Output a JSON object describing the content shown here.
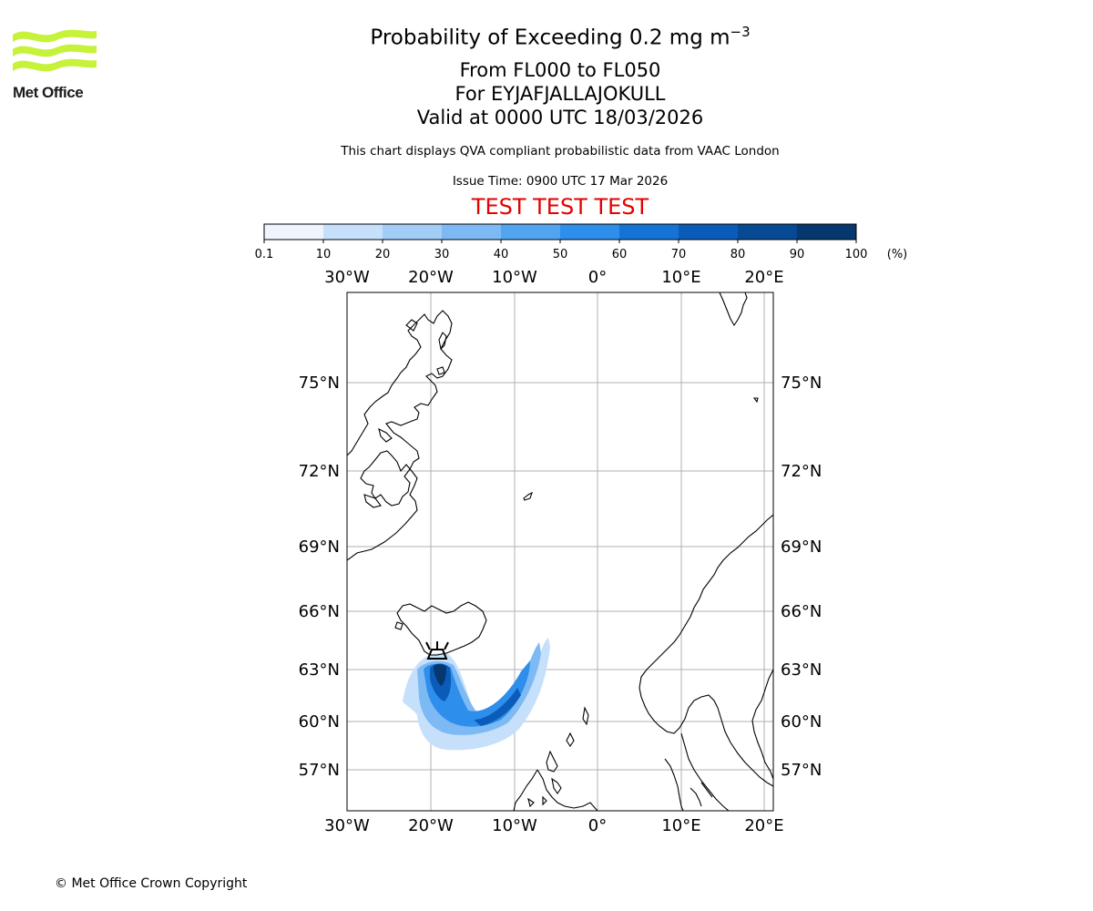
{
  "logo": {
    "text": "Met Office"
  },
  "title": {
    "main": "Probability of Exceeding 0.2 mg m",
    "main_superscript": "−3",
    "levels": "From FL000 to FL050",
    "volcano": "For EYJAFJALLAJOKULL",
    "valid": "Valid at 0000 UTC 18/03/2026",
    "subtitle": "This chart displays QVA compliant probabilistic data from VAAC London",
    "issue_time": "Issue Time: 0900 UTC 17 Mar 2026",
    "test_banner": "TEST TEST TEST"
  },
  "colors": {
    "test_banner": "#e60000",
    "colorbar": [
      "#eef5fd",
      "#c6e0fb",
      "#a2cdf7",
      "#7dbaf3",
      "#52a4f0",
      "#2e8eec",
      "#1573d6",
      "#0a5cb8",
      "#064a94",
      "#05386e"
    ],
    "coastline": "#000000",
    "gridline": "#b0b0b0"
  },
  "colorbar": {
    "ticks": [
      "0.1",
      "10",
      "20",
      "30",
      "40",
      "50",
      "60",
      "70",
      "80",
      "90",
      "100"
    ],
    "unit": "(%)"
  },
  "map": {
    "lon_labels": [
      "30°W",
      "20°W",
      "10°W",
      "0°",
      "10°E",
      "20°E"
    ],
    "lat_labels": [
      "75°N",
      "72°N",
      "69°N",
      "66°N",
      "63°N",
      "60°N",
      "57°N"
    ],
    "volcano_marker_icon": "volcano-icon"
  },
  "footer": {
    "copyright": "© Met Office Crown Copyright"
  }
}
